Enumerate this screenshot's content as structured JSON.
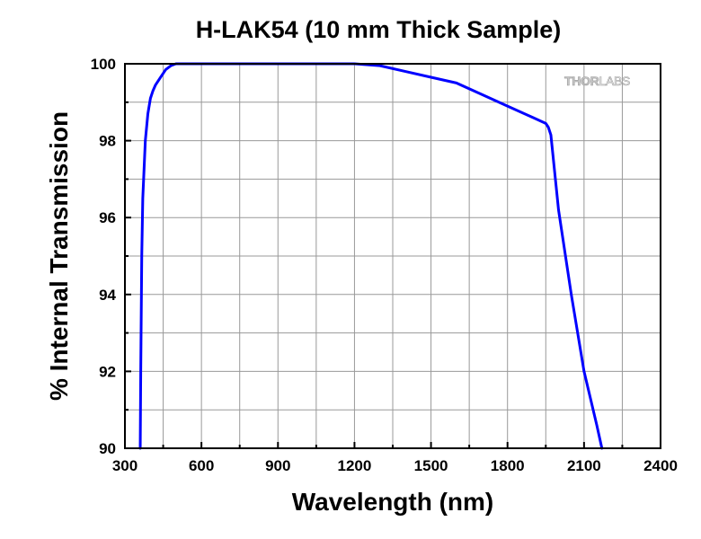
{
  "chart_data": {
    "type": "line",
    "title": "H-LAK54 (10 mm Thick Sample)",
    "xlabel": "Wavelength (nm)",
    "ylabel": "% Internal Transmission",
    "xlim": [
      300,
      2400
    ],
    "ylim": [
      90,
      100
    ],
    "xticks": [
      300,
      600,
      900,
      1200,
      1500,
      1800,
      2100,
      2400
    ],
    "yticks": [
      90,
      92,
      94,
      96,
      98,
      100
    ],
    "grid": true,
    "legend": "none",
    "logo": "THORLABS",
    "series": [
      {
        "color": "#0000ff",
        "x": [
          360,
          362,
          366,
          370,
          380,
          390,
          400,
          410,
          420,
          440,
          460,
          480,
          500,
          550,
          600,
          800,
          1000,
          1200,
          1300,
          1400,
          1500,
          1600,
          1700,
          1800,
          1900,
          1950,
          1960,
          1970,
          2000,
          2050,
          2100,
          2150,
          2170
        ],
        "y": [
          90.0,
          92.0,
          95.0,
          96.5,
          98.0,
          98.7,
          99.1,
          99.3,
          99.45,
          99.65,
          99.85,
          99.95,
          100.0,
          100.0,
          100.0,
          100.0,
          100.0,
          100.0,
          99.95,
          99.8,
          99.65,
          99.5,
          99.2,
          98.9,
          98.6,
          98.45,
          98.35,
          98.15,
          96.2,
          94.0,
          92.0,
          90.6,
          90.0
        ]
      }
    ]
  }
}
